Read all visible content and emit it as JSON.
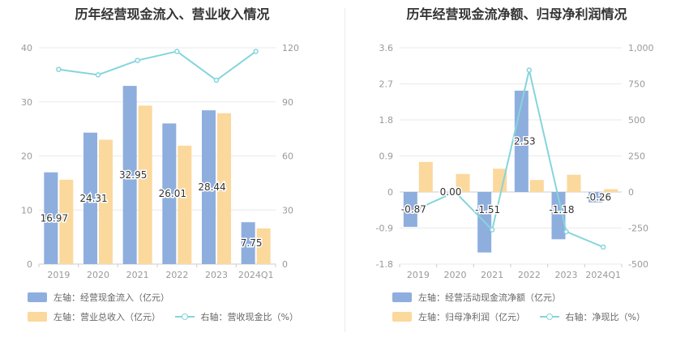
{
  "colors": {
    "bar1": "#8eaede",
    "bar2": "#fbd89c",
    "line": "#84d5dc",
    "grid": "#eaeaea",
    "axis": "#cccccc",
    "text": "#999999",
    "label": "#333333"
  },
  "chart_data": [
    {
      "type": "bar",
      "title": "历年经营现金流入、营业收入情况",
      "categories": [
        "2019",
        "2020",
        "2021",
        "2022",
        "2023",
        "2024Q1"
      ],
      "y_left": {
        "min": 0,
        "max": 40,
        "ticks": [
          "0",
          "10",
          "20",
          "30",
          "40"
        ]
      },
      "y_right": {
        "min": 0,
        "max": 120,
        "ticks": [
          "0",
          "30",
          "60",
          "90",
          "120"
        ]
      },
      "series": [
        {
          "name": "左轴：经营现金流入（亿元）",
          "axis": "left",
          "kind": "bar",
          "values": [
            16.97,
            24.31,
            32.95,
            26.01,
            28.44,
            7.75
          ],
          "labels": [
            "16.97",
            "24.31",
            "32.95",
            "26.01",
            "28.44",
            "7.75"
          ]
        },
        {
          "name": "左轴：营业总收入（亿元）",
          "axis": "left",
          "kind": "bar",
          "values": [
            15.6,
            23.0,
            29.3,
            21.9,
            27.9,
            6.6
          ]
        },
        {
          "name": "右轴：营收现金比（%）",
          "axis": "right",
          "kind": "line",
          "values": [
            108,
            105,
            113,
            118,
            102,
            118
          ]
        }
      ]
    },
    {
      "type": "bar",
      "title": "历年经营现金流净额、归母净利润情况",
      "categories": [
        "2019",
        "2020",
        "2021",
        "2022",
        "2023",
        "2024Q1"
      ],
      "y_left": {
        "min": -1.8,
        "max": 3.6,
        "ticks": [
          "-1.8",
          "-0.9",
          "0",
          "0.9",
          "1.8",
          "2.7",
          "3.6"
        ]
      },
      "y_right": {
        "min": -500,
        "max": 1000,
        "ticks": [
          "-500",
          "-250",
          "0",
          "250",
          "500",
          "750",
          "1,000"
        ]
      },
      "series": [
        {
          "name": "左轴：经营活动现金流净额（亿元）",
          "axis": "left",
          "kind": "bar",
          "values": [
            -0.87,
            0.0,
            -1.51,
            2.53,
            -1.18,
            -0.26
          ],
          "labels": [
            "-0.87",
            "0.00",
            "-1.51",
            "2.53",
            "-1.18",
            "-0.26"
          ]
        },
        {
          "name": "左轴：归母净利润（亿元）",
          "axis": "left",
          "kind": "bar",
          "values": [
            0.75,
            0.45,
            0.58,
            0.3,
            0.43,
            0.07
          ]
        },
        {
          "name": "右轴：净现比（%）",
          "axis": "right",
          "kind": "line",
          "values": [
            -115,
            0,
            -262,
            845,
            -275,
            -382
          ]
        }
      ]
    }
  ]
}
